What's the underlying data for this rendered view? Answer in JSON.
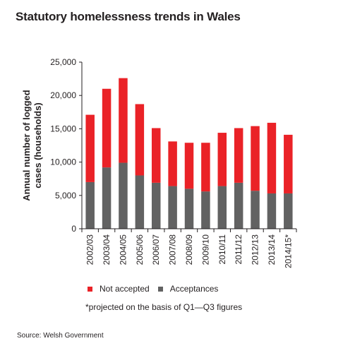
{
  "title": "Statutory homelessness trends in Wales",
  "footnote": "*projected on the basis of Q1—Q3 figures",
  "source": "Source: Welsh Government",
  "colors": {
    "not_accepted": "#ea2227",
    "acceptances": "#626262",
    "axis": "#231f20"
  },
  "chart_data": {
    "type": "bar",
    "stacked": true,
    "categories": [
      "2002/03",
      "2003/04",
      "2004/05",
      "2005/06",
      "2006/07",
      "2007/08",
      "2008/09",
      "2009/10",
      "2010/11",
      "2011/12",
      "2012/13",
      "2013/14",
      "2014/15*"
    ],
    "series": [
      {
        "name": "Acceptances",
        "values": [
          7000,
          9200,
          9900,
          8000,
          6900,
          6400,
          6000,
          5600,
          6400,
          6900,
          5700,
          5300,
          5300
        ]
      },
      {
        "name": "Not accepted",
        "values": [
          10100,
          11800,
          12700,
          10700,
          8200,
          6700,
          6900,
          7300,
          8000,
          8200,
          9700,
          10600,
          8800
        ]
      }
    ],
    "legend": [
      "Not accepted",
      "Acceptances"
    ],
    "legend_position": "bottom",
    "ylabel": "Annual number of logged cases (households)",
    "ylabel_lines": [
      "Annual number of logged",
      "cases (households)"
    ],
    "xlabel": "",
    "ylim": [
      0,
      25000
    ],
    "yticks": [
      0,
      5000,
      10000,
      15000,
      20000,
      25000
    ],
    "ytick_labels": [
      "0",
      "5,000",
      "10,000",
      "15,000",
      "20,000",
      "25,000"
    ],
    "grid": false
  }
}
